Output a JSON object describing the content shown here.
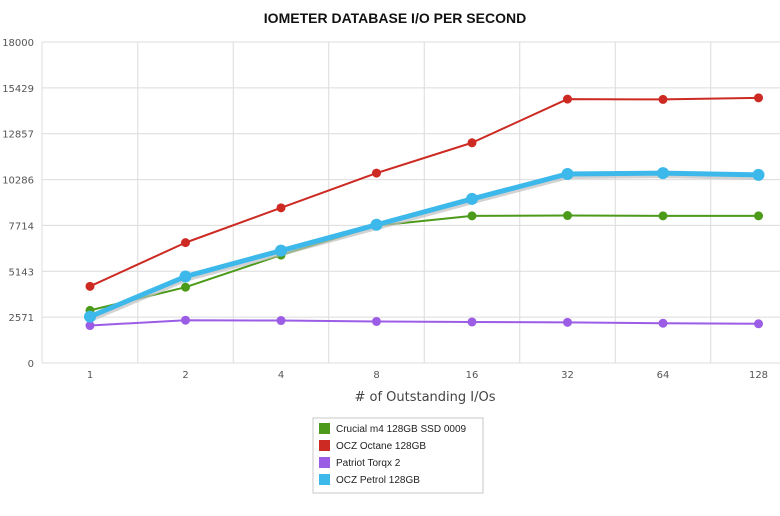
{
  "chart_data": {
    "type": "line",
    "title": "IOMETER DATABASE I/O PER SECOND",
    "xlabel": "# of Outstanding I/Os",
    "ylabel": "",
    "categories": [
      "1",
      "2",
      "4",
      "8",
      "16",
      "32",
      "64",
      "128"
    ],
    "yticks": [
      "0",
      "2571",
      "5143",
      "7714",
      "10286",
      "12857",
      "15429",
      "18000"
    ],
    "ylim": [
      0,
      18000
    ],
    "grid": true,
    "legend_position": "bottom-center",
    "series": [
      {
        "name": "Crucial m4 128GB SSD 0009",
        "color": "#4c9a1a",
        "values": [
          2950,
          4250,
          6050,
          7700,
          8250,
          8270,
          8250,
          8250
        ]
      },
      {
        "name": "OCZ Octane 128GB",
        "color": "#cc2a22",
        "values": [
          4300,
          6750,
          8700,
          10650,
          12350,
          14800,
          14780,
          14870
        ]
      },
      {
        "name": "Patriot Torqx 2",
        "color": "#9b5de5",
        "values": [
          2100,
          2400,
          2380,
          2330,
          2300,
          2280,
          2230,
          2200
        ]
      },
      {
        "name": "OCZ Petrol 128GB",
        "color": "#3db8ea",
        "values": [
          2600,
          4850,
          6300,
          7750,
          9200,
          10600,
          10650,
          10550
        ]
      }
    ]
  }
}
